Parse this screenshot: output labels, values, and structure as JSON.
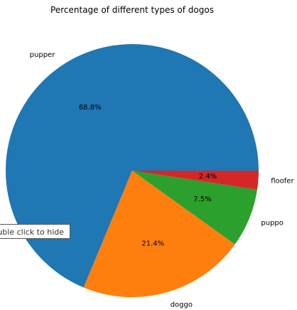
{
  "chart_data": {
    "type": "pie",
    "title": "Percentage of different types of dogos",
    "categories": [
      "pupper",
      "doggo",
      "puppo",
      "floofer"
    ],
    "values": [
      68.8,
      21.4,
      7.5,
      2.4
    ],
    "percent_labels": [
      "68.8%",
      "21.4%",
      "7.5%",
      "2.4%"
    ],
    "colors": [
      "#1f77b4",
      "#ff7f0e",
      "#2ca02c",
      "#d62728"
    ],
    "start_angle_deg": 0,
    "direction": "counterclockwise"
  },
  "tooltip": {
    "text": "uble click to hide"
  }
}
